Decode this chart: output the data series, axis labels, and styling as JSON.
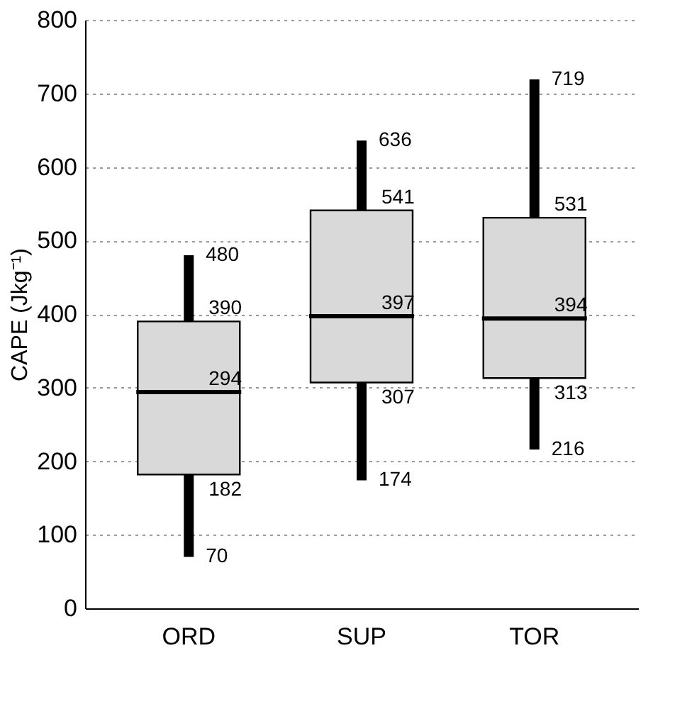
{
  "chart_data": {
    "type": "box",
    "ylabel": "CAPE (Jkg⁻¹)",
    "categories": [
      "ORD",
      "SUP",
      "TOR"
    ],
    "boxes": [
      {
        "low": 70,
        "q1": 182,
        "median": 294,
        "q3": 390,
        "high": 480
      },
      {
        "low": 174,
        "q1": 307,
        "median": 397,
        "q3": 541,
        "high": 636
      },
      {
        "low": 216,
        "q1": 313,
        "median": 394,
        "q3": 531,
        "high": 719
      }
    ],
    "color": "#d9d9d9",
    "ylim": [
      0,
      800
    ],
    "yticks": [
      0,
      100,
      200,
      300,
      400,
      500,
      600,
      700,
      800
    ],
    "grid": "y",
    "annotations": [
      {
        "text": "480",
        "x": "ORD",
        "y": 480
      },
      {
        "text": "390",
        "x": "ORD",
        "y": 390
      },
      {
        "text": "294",
        "x": "ORD",
        "y": 294
      },
      {
        "text": "182",
        "x": "ORD",
        "y": 182
      },
      {
        "text": "70",
        "x": "ORD",
        "y": 70
      },
      {
        "text": "636",
        "x": "SUP",
        "y": 636
      },
      {
        "text": "541",
        "x": "SUP",
        "y": 541
      },
      {
        "text": "397",
        "x": "SUP",
        "y": 397
      },
      {
        "text": "307",
        "x": "SUP",
        "y": 307
      },
      {
        "text": "174",
        "x": "SUP",
        "y": 174
      },
      {
        "text": "719",
        "x": "TOR",
        "y": 719
      },
      {
        "text": "531",
        "x": "TOR",
        "y": 531
      },
      {
        "text": "394",
        "x": "TOR",
        "y": 394
      },
      {
        "text": "313",
        "x": "TOR",
        "y": 313
      },
      {
        "text": "216",
        "x": "TOR",
        "y": 216
      }
    ]
  }
}
